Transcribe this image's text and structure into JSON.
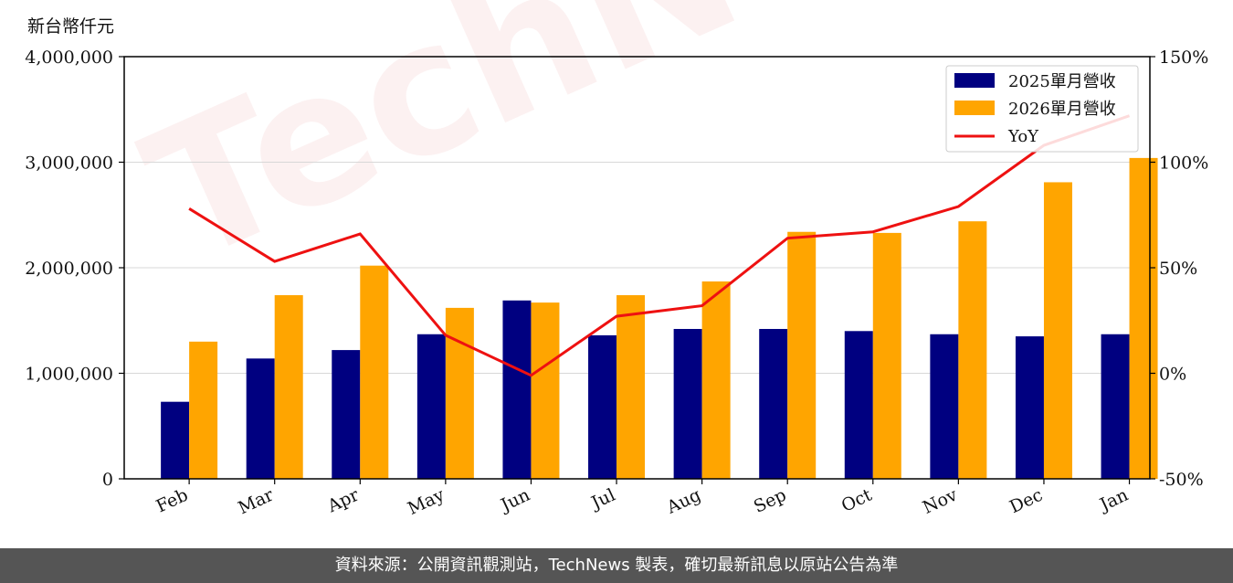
{
  "unit_label": "新台幣仟元",
  "watermark_text": "TechNews",
  "footer_text": "資料來源：公開資訊觀測站，TechNews 製表，確切最新訊息以原站公告為準",
  "chart_data": {
    "type": "bar",
    "categories": [
      "Feb",
      "Mar",
      "Apr",
      "May",
      "Jun",
      "Jul",
      "Aug",
      "Sep",
      "Oct",
      "Nov",
      "Dec",
      "Jan"
    ],
    "ylim": [
      0,
      4000000
    ],
    "y_ticks": [
      "0",
      "1,000,000",
      "2,000,000",
      "3,000,000",
      "4,000,000"
    ],
    "y2lim": [
      -50,
      150
    ],
    "y2_ticks": [
      "-50%",
      "0%",
      "50%",
      "100%",
      "150%"
    ],
    "grid": true,
    "legend_position": "top-right",
    "series": [
      {
        "name": "2025單月營收",
        "type": "bar",
        "color": "#000080",
        "values": [
          730000,
          1140000,
          1220000,
          1370000,
          1690000,
          1360000,
          1420000,
          1420000,
          1400000,
          1370000,
          1350000,
          1370000
        ]
      },
      {
        "name": "2026單月營收",
        "type": "bar",
        "color": "#FFA500",
        "values": [
          1300000,
          1740000,
          2020000,
          1620000,
          1670000,
          1740000,
          1870000,
          2340000,
          2330000,
          2440000,
          2810000,
          3040000
        ]
      },
      {
        "name": "YoY",
        "type": "line",
        "axis": "right",
        "color": "#EE1111",
        "values": [
          78,
          53,
          66,
          18,
          -1,
          27,
          32,
          64,
          67,
          79,
          108,
          122
        ]
      }
    ]
  }
}
